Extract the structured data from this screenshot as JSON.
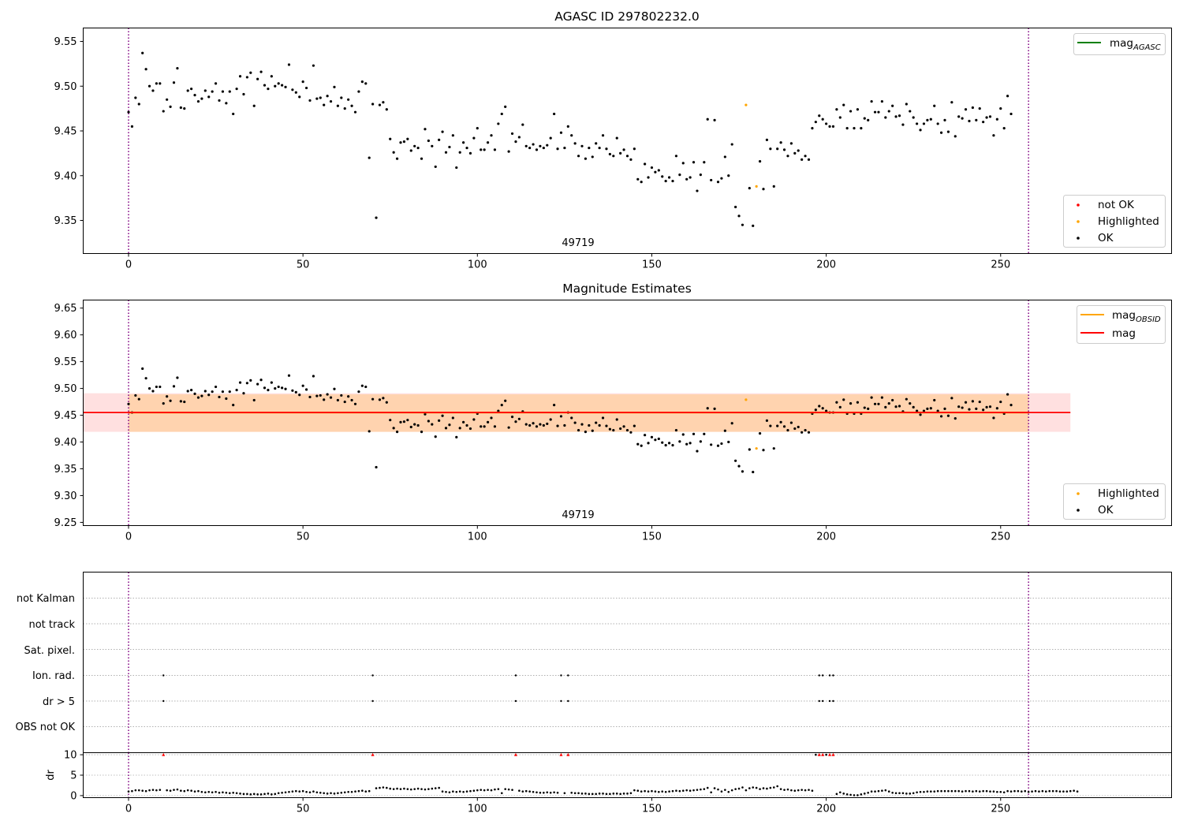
{
  "figure": {
    "panel1": {
      "title": "AGASC ID 297802232.0",
      "obsid_label": "49719",
      "legend_top": [
        {
          "label": "mag",
          "sub": "AGASC",
          "color": "#008000"
        }
      ],
      "legend_bottom": [
        {
          "label": "not OK",
          "color": "#ff0000"
        },
        {
          "label": "Highlighted",
          "color": "#ffa500"
        },
        {
          "label": "OK",
          "color": "#000000"
        }
      ]
    },
    "panel2": {
      "title": "Magnitude Estimates",
      "obsid_label": "49719",
      "legend_top": [
        {
          "label": "mag",
          "sub": "OBSID",
          "color": "#ffa500"
        },
        {
          "label": "mag",
          "sub": "",
          "color": "#ff0000"
        }
      ],
      "legend_bottom": [
        {
          "label": "Highlighted",
          "color": "#ffa500"
        },
        {
          "label": "OK",
          "color": "#000000"
        }
      ]
    },
    "panel3": {
      "flag_labels": [
        "not Kalman",
        "not track",
        "Sat. pixel.",
        "Ion. rad.",
        "dr > 5",
        "OBS not OK"
      ]
    },
    "panel4": {
      "ylabel": "dr"
    }
  },
  "chart_data": [
    {
      "type": "scatter",
      "title": "AGASC ID 297802232.0",
      "annotation": "49719",
      "xlim": [
        -13,
        299
      ],
      "ylim": [
        9.313,
        9.565
      ],
      "xticks": [
        0,
        50,
        100,
        150,
        200,
        250
      ],
      "yticks": [
        9.35,
        9.4,
        9.45,
        9.5,
        9.55
      ],
      "vlines": [
        0,
        258
      ],
      "y": [
        9.471,
        9.455,
        9.487,
        9.48,
        9.537,
        9.519,
        9.5,
        9.495,
        9.503,
        9.503,
        9.472,
        9.485,
        9.477,
        9.504,
        9.52,
        9.476,
        9.475,
        9.495,
        9.497,
        9.49,
        9.483,
        9.486,
        9.495,
        9.488,
        9.494,
        9.503,
        9.484,
        9.494,
        9.481,
        9.494,
        9.469,
        9.497,
        9.511,
        9.491,
        9.51,
        9.515,
        9.478,
        9.508,
        9.516,
        9.501,
        9.497,
        9.511,
        9.5,
        9.503,
        9.501,
        9.499,
        9.524,
        9.496,
        9.493,
        9.488,
        9.505,
        9.498,
        9.484,
        9.523,
        9.486,
        9.487,
        9.479,
        9.489,
        9.483,
        9.499,
        9.478,
        9.487,
        9.475,
        9.485,
        9.478,
        9.471,
        9.494,
        9.505,
        9.503,
        9.42,
        9.48,
        9.353,
        9.479,
        9.482,
        9.474,
        9.441,
        9.426,
        9.419,
        9.437,
        9.438,
        9.441,
        9.428,
        9.433,
        9.431,
        9.419,
        9.452,
        9.439,
        9.433,
        9.41,
        9.44,
        9.449,
        9.426,
        9.432,
        9.445,
        9.409,
        9.426,
        9.437,
        9.431,
        9.425,
        9.442,
        9.453,
        9.429,
        9.429,
        9.437,
        9.445,
        9.429,
        9.458,
        9.469,
        9.477,
        9.427,
        9.447,
        9.438,
        9.443,
        9.457,
        9.433,
        9.431,
        9.435,
        9.429,
        9.433,
        9.431,
        9.434,
        9.442,
        9.469,
        9.43,
        9.448,
        9.431,
        9.455,
        9.445,
        9.436,
        9.422,
        9.433,
        9.419,
        9.431,
        9.421,
        9.436,
        9.431,
        9.445,
        9.43,
        9.424,
        9.422,
        9.442,
        9.425,
        9.429,
        9.422,
        9.418,
        9.43,
        9.396,
        9.393,
        9.413,
        9.398,
        9.409,
        9.404,
        9.406,
        9.399,
        9.394,
        9.398,
        9.394,
        9.422,
        9.401,
        9.414,
        9.396,
        9.398,
        9.415,
        9.383,
        9.401,
        9.415,
        9.463,
        9.395,
        9.462,
        9.393,
        9.397,
        9.421,
        9.4,
        9.435,
        9.365,
        9.355,
        9.345,
        9.479,
        9.386,
        9.344,
        9.388,
        9.416,
        9.385,
        9.44,
        9.43,
        9.388,
        9.43,
        9.437,
        9.429,
        9.422,
        9.436,
        9.425,
        9.428,
        9.418,
        9.422,
        9.418,
        9.453,
        9.46,
        9.467,
        9.463,
        9.458,
        9.455,
        9.455,
        9.474,
        9.465,
        9.479,
        9.453,
        9.472,
        9.453,
        9.474,
        9.453,
        9.464,
        9.462,
        9.483,
        9.471,
        9.471,
        9.483,
        9.465,
        9.472,
        9.478,
        9.466,
        9.467,
        9.457,
        9.48,
        9.472,
        9.465,
        9.458,
        9.451,
        9.458,
        9.462,
        9.463,
        9.478,
        9.458,
        9.448,
        9.462,
        9.449,
        9.482,
        9.444,
        9.466,
        9.464,
        9.474,
        9.461,
        9.476,
        9.462,
        9.475,
        9.46,
        9.465,
        9.466,
        9.445,
        9.463,
        9.475,
        9.453,
        9.489,
        9.469
      ],
      "highlighted_x": [
        177,
        180
      ],
      "series": [
        {
          "name": "not OK",
          "color": "#ff0000"
        },
        {
          "name": "Highlighted",
          "color": "#ffa500"
        },
        {
          "name": "OK",
          "color": "#000000"
        }
      ],
      "legend_position": "upper-right / lower-right"
    },
    {
      "type": "scatter",
      "title": "Magnitude Estimates",
      "annotation": "49719",
      "xlim": [
        -13,
        299
      ],
      "ylim": [
        9.244,
        9.665
      ],
      "xticks": [
        0,
        50,
        100,
        150,
        200,
        250
      ],
      "yticks": [
        9.25,
        9.3,
        9.35,
        9.4,
        9.45,
        9.5,
        9.55,
        9.6,
        9.65
      ],
      "vlines": [
        0,
        258
      ],
      "mag_OBSID": {
        "value": 9.455,
        "band": [
          9.419,
          9.489
        ],
        "x_range": [
          0,
          258
        ],
        "color": "#ffa500"
      },
      "mag": {
        "value": 9.455,
        "band": [
          9.419,
          9.491
        ],
        "x_range": [
          -13,
          270
        ],
        "color": "#ff0000"
      },
      "series": [
        {
          "name": "Highlighted",
          "color": "#ffa500"
        },
        {
          "name": "OK",
          "color": "#000000"
        }
      ],
      "legend_position": "upper-right / lower-right"
    },
    {
      "type": "scatter",
      "xlim": [
        -13,
        299
      ],
      "flags": {
        "not Kalman": [],
        "not track": [],
        "Sat. pixel.": [],
        "Ion. rad.": [
          10,
          70,
          111,
          124,
          126,
          198,
          199,
          201,
          202
        ],
        "dr > 5": [
          10,
          70,
          111,
          124,
          126,
          198,
          199,
          201,
          202
        ],
        "OBS not OK": []
      }
    },
    {
      "type": "scatter",
      "ylabel": "dr",
      "xlim": [
        -13,
        299
      ],
      "ylim": [
        -0.5,
        10.5
      ],
      "yticks": [
        0,
        5,
        10
      ],
      "xticks": [
        0,
        50,
        100,
        150,
        200,
        250
      ],
      "vlines": [
        0,
        258
      ],
      "high_dr_x": [
        10,
        70,
        111,
        124,
        126,
        198,
        199,
        201,
        202
      ],
      "dr": [
        1.0,
        1.1,
        1.3,
        1.3,
        1.2,
        1.1,
        1.3,
        1.4,
        1.3,
        1.4,
        10,
        1.3,
        1.2,
        1.4,
        1.5,
        1.2,
        1.1,
        1.3,
        1.2,
        1.0,
        1.1,
        0.9,
        0.8,
        0.9,
        0.8,
        0.9,
        0.7,
        0.8,
        0.7,
        0.6,
        0.7,
        0.6,
        0.5,
        0.4,
        0.4,
        0.3,
        0.4,
        0.3,
        0.3,
        0.4,
        0.5,
        0.3,
        0.4,
        0.6,
        0.7,
        0.8,
        0.9,
        1.0,
        1.1,
        1.0,
        1.1,
        0.9,
        0.8,
        1.0,
        0.8,
        0.7,
        0.6,
        0.5,
        0.6,
        0.5,
        0.6,
        0.7,
        0.8,
        0.9,
        0.9,
        1.0,
        1.1,
        1.2,
        1.0,
        1.1,
        10,
        1.8,
        1.9,
        2.0,
        1.9,
        1.7,
        1.6,
        1.7,
        1.6,
        1.7,
        1.6,
        1.5,
        1.6,
        1.7,
        1.6,
        1.5,
        1.6,
        1.7,
        1.8,
        1.9,
        1.0,
        0.9,
        0.8,
        1.0,
        0.9,
        1.0,
        0.9,
        1.0,
        1.1,
        1.2,
        1.3,
        1.4,
        1.3,
        1.4,
        1.3,
        1.5,
        1.6,
        0.6,
        1.6,
        1.5,
        1.4,
        10,
        1.2,
        1.0,
        1.1,
        1.0,
        0.9,
        0.8,
        0.7,
        0.7,
        0.8,
        0.7,
        0.8,
        0.7,
        10,
        0.6,
        10,
        0.7,
        0.6,
        0.6,
        0.5,
        0.5,
        0.4,
        0.4,
        0.4,
        0.5,
        0.5,
        0.4,
        0.4,
        0.5,
        0.5,
        0.4,
        0.5,
        0.5,
        0.6,
        1.3,
        1.2,
        1.0,
        1.1,
        1.0,
        1.1,
        1.0,
        0.9,
        1.0,
        0.9,
        1.0,
        1.1,
        1.2,
        1.1,
        1.2,
        1.3,
        1.2,
        1.3,
        1.4,
        1.5,
        1.6,
        1.9,
        0.8,
        1.8,
        1.5,
        1.0,
        1.4,
        0.9,
        1.3,
        1.6,
        1.7,
        2.0,
        1.3,
        1.8,
        2.0,
        1.9,
        1.6,
        1.8,
        1.7,
        1.9,
        2.0,
        2.3,
        1.6,
        1.4,
        1.5,
        1.3,
        1.2,
        1.3,
        1.4,
        1.3,
        1.4,
        1.2,
        10,
        10,
        1.0,
        10,
        10,
        0.2,
        0.4,
        0.8,
        0.5,
        0.3,
        0.2,
        0.1,
        0.1,
        0.3,
        0.5,
        0.7,
        1.0,
        1.0,
        1.1,
        1.2,
        1.3,
        1.0,
        0.7,
        0.6,
        0.6,
        0.6,
        0.5,
        0.5,
        0.6,
        0.8,
        0.9,
        0.9,
        1.0,
        1.0,
        1.0,
        1.1,
        1.1,
        1.1,
        1.1,
        1.1,
        1.1,
        1.1,
        1.0,
        1.1,
        1.1,
        1.0,
        1.1,
        1.0,
        1.1,
        1.1,
        1.0,
        1.0,
        0.9,
        0.9,
        0.8,
        1.1,
        1.0,
        1.1,
        1.1,
        1.0,
        1.1,
        0.9,
        1.0,
        1.1,
        1.0,
        1.1,
        1.0,
        1.1,
        1.1,
        1.1,
        1.0,
        1.0,
        1.0,
        1.1,
        1.2,
        1.0
      ]
    }
  ]
}
